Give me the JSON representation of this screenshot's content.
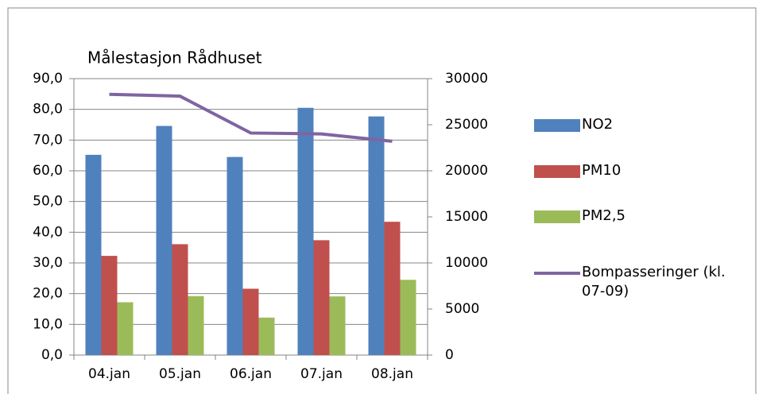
{
  "chart_data": {
    "type": "bar",
    "title": "Målestasjon Rådhuset",
    "categories": [
      "04.jan",
      "05.jan",
      "06.jan",
      "07.jan",
      "08.jan"
    ],
    "series": [
      {
        "name": "NO2",
        "color": "#4f81bd",
        "values": [
          65.2,
          74.6,
          64.5,
          80.5,
          77.7
        ]
      },
      {
        "name": "PM10",
        "color": "#c0504d",
        "values": [
          32.3,
          36.1,
          21.6,
          37.4,
          43.4
        ]
      },
      {
        "name": "PM2,5",
        "color": "#9bbb59",
        "values": [
          17.2,
          19.2,
          12.2,
          19.1,
          24.5
        ]
      },
      {
        "name": "Bompasseringer (kl. 07-09)",
        "color": "#8064a2",
        "type": "line",
        "axis": "y2",
        "values": [
          28300,
          28100,
          24100,
          24000,
          23200
        ]
      }
    ],
    "ylim": [
      0,
      90
    ],
    "yticks": [
      {
        "value": 0,
        "label": "0,0"
      },
      {
        "value": 10,
        "label": "10,0"
      },
      {
        "value": 20,
        "label": "20,0"
      },
      {
        "value": 30,
        "label": "30,0"
      },
      {
        "value": 40,
        "label": "40,0"
      },
      {
        "value": 50,
        "label": "50,0"
      },
      {
        "value": 60,
        "label": "60,0"
      },
      {
        "value": 70,
        "label": "70,0"
      },
      {
        "value": 80,
        "label": "80,0"
      },
      {
        "value": 90,
        "label": "90,0"
      }
    ],
    "y2lim": [
      0,
      30000
    ],
    "y2ticks": [
      0,
      5000,
      10000,
      15000,
      20000,
      25000,
      30000
    ],
    "grid": true,
    "legend": "right"
  }
}
